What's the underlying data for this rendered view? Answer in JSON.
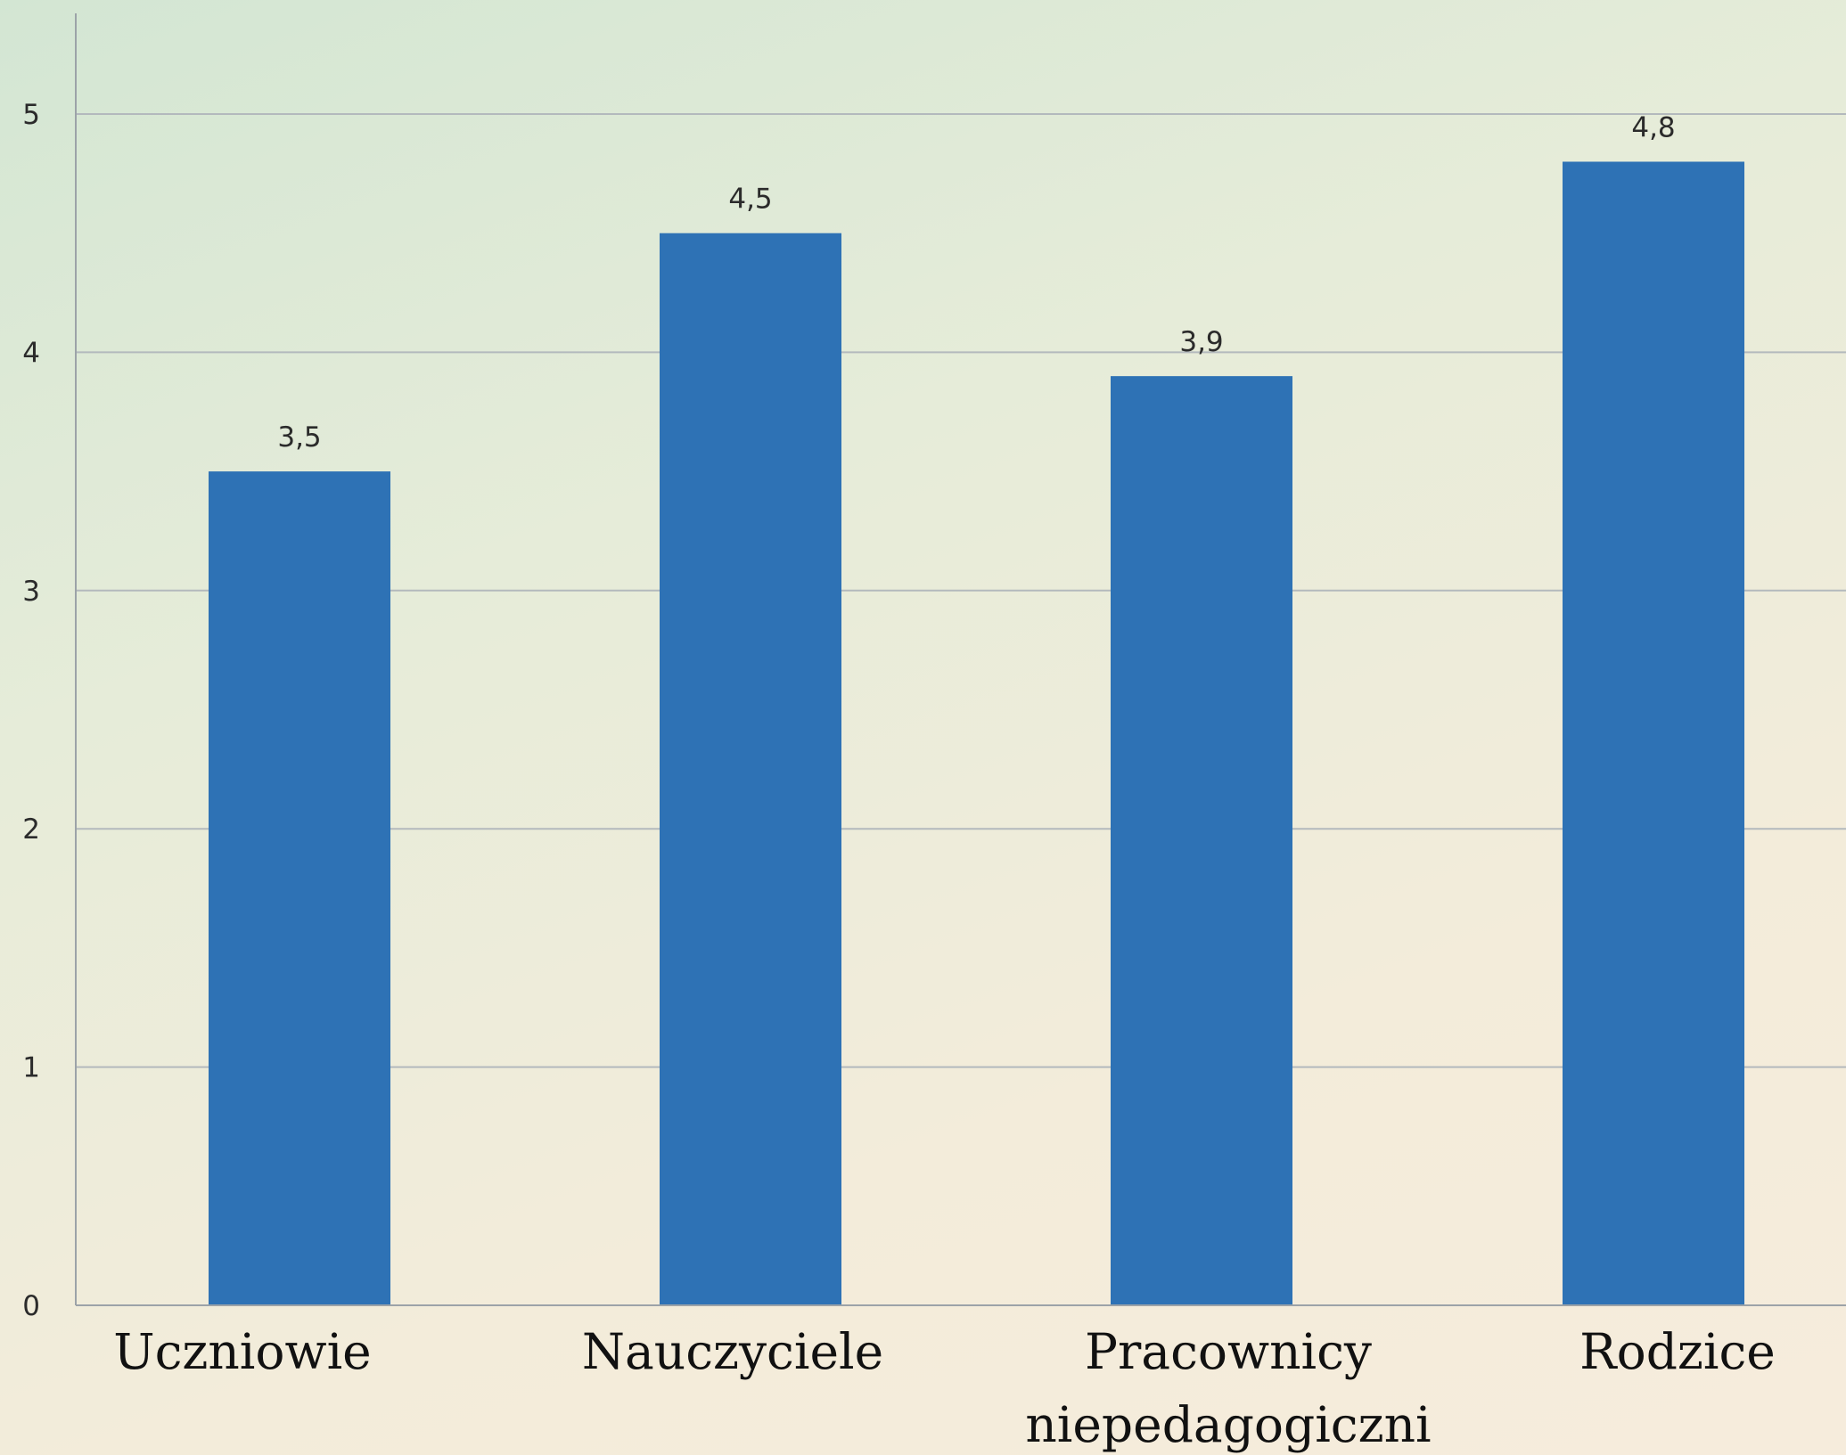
{
  "chart_data": {
    "type": "bar",
    "categories": [
      [
        "Uczniowie"
      ],
      [
        "Nauczyciele"
      ],
      [
        "Pracownicy",
        "niepedagogiczni"
      ],
      [
        "Rodzice"
      ]
    ],
    "values": [
      3.5,
      4.5,
      3.9,
      4.8
    ],
    "data_labels": [
      "3,5",
      "4,5",
      "3,9",
      "4,8"
    ],
    "y_ticks": [
      "0",
      "1",
      "2",
      "3",
      "4",
      "5"
    ],
    "ylim": [
      0,
      5.4
    ],
    "grid": true,
    "bar_color": "#2e72b5"
  }
}
